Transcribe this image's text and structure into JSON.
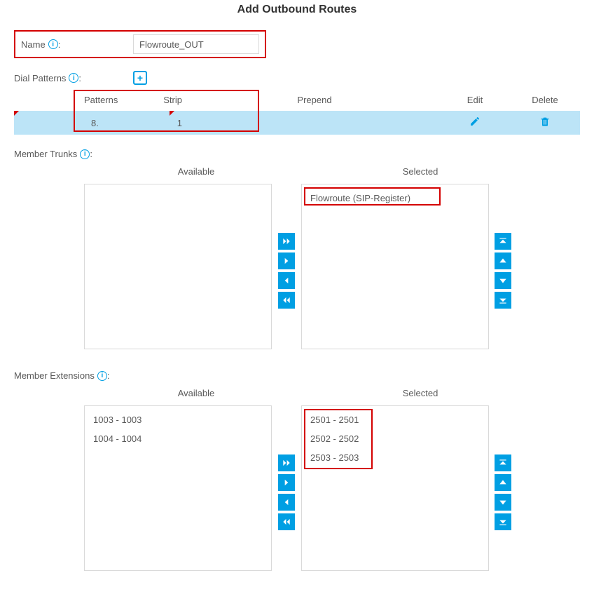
{
  "title": "Add Outbound Routes",
  "name_label": "Name",
  "name_value": "Flowroute_OUT",
  "dial_patterns_label": "Dial Patterns",
  "patterns_table": {
    "headers": {
      "patterns": "Patterns",
      "strip": "Strip",
      "prepend": "Prepend",
      "edit": "Edit",
      "delete": "Delete"
    },
    "row": {
      "pattern": "8.",
      "strip": "1",
      "prepend": ""
    }
  },
  "member_trunks_label": "Member Trunks",
  "member_extensions_label": "Member Extensions",
  "dual_labels": {
    "available": "Available",
    "selected": "Selected"
  },
  "trunks": {
    "available": [],
    "selected": [
      "Flowroute (SIP-Register)"
    ]
  },
  "extensions": {
    "available": [
      "1003 - 1003",
      "1004 - 1004"
    ],
    "selected": [
      "2501 - 2501",
      "2502 - 2502",
      "2503 - 2503"
    ]
  },
  "colors": {
    "accent": "#009fe3",
    "row_bg": "#bce4f7",
    "highlight": "#d40000"
  }
}
